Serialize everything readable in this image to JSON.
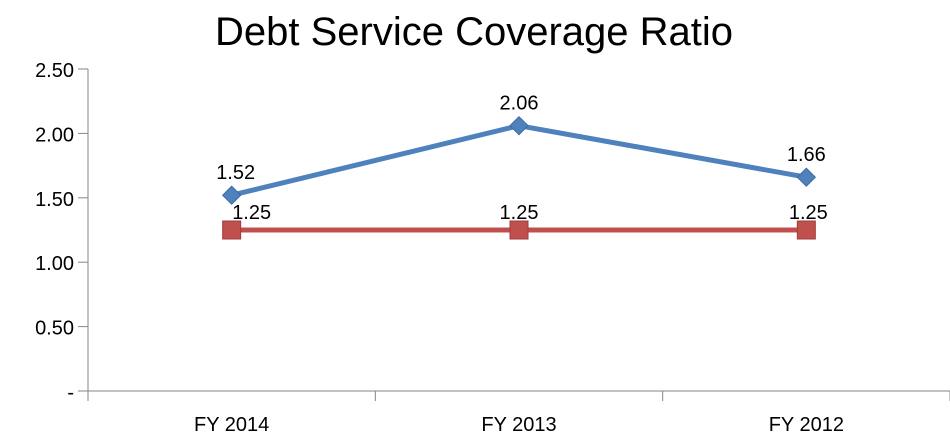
{
  "chart_data": {
    "type": "line",
    "title": "Debt Service Coverage Ratio",
    "categories": [
      "FY 2014",
      "FY 2013",
      "FY 2012"
    ],
    "series": [
      {
        "values": [
          1.52,
          2.06,
          1.66
        ],
        "data_labels": [
          "1.52",
          "2.06",
          "1.66"
        ],
        "color": "#4F81BD",
        "marker": "diamond"
      },
      {
        "values": [
          1.25,
          1.25,
          1.25
        ],
        "data_labels": [
          "1.25",
          "1.25",
          "1.25"
        ],
        "color": "#C0504D",
        "marker": "square"
      }
    ],
    "y_ticks": [
      0,
      0.5,
      1.0,
      1.5,
      2.0,
      2.5
    ],
    "y_tick_labels": [
      "-",
      "0.50",
      "1.00",
      "1.50",
      "2.00",
      "2.50"
    ],
    "ylim": [
      0,
      2.5
    ],
    "grid": false,
    "legend": "none"
  }
}
